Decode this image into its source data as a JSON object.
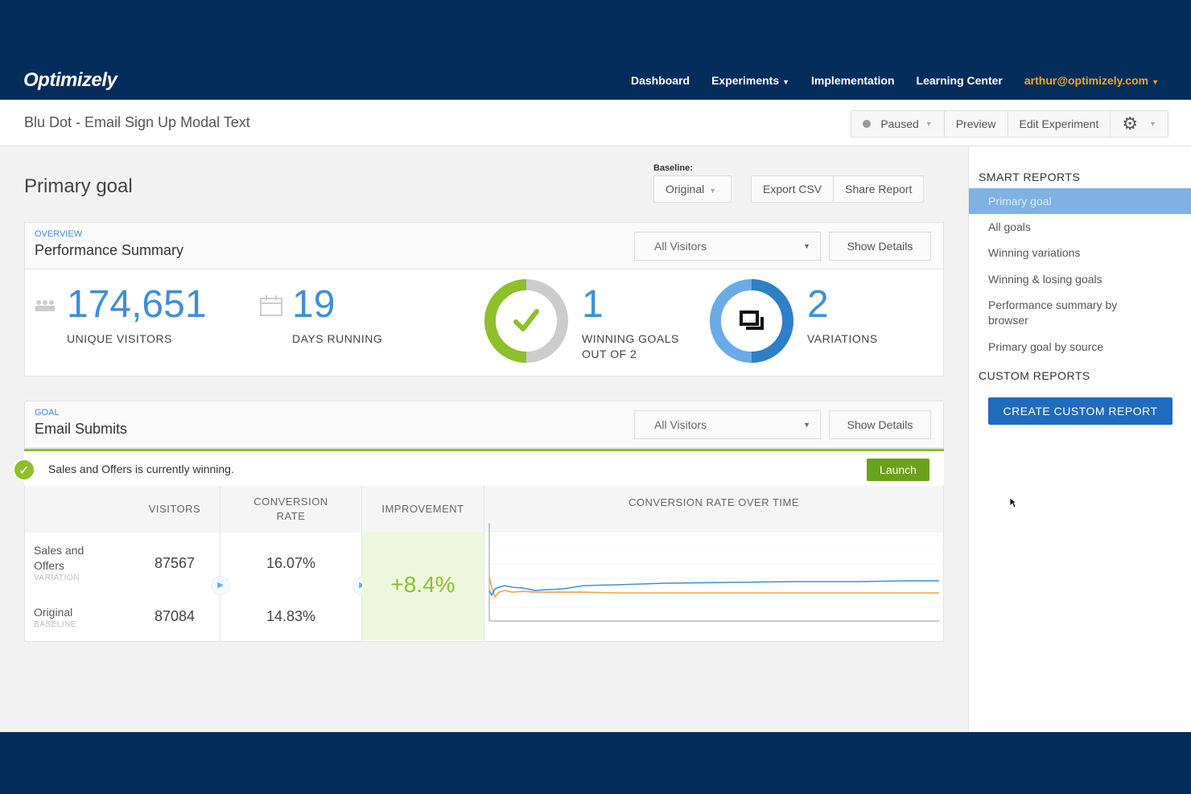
{
  "nav": {
    "logo": "Optimizely",
    "links": [
      "Dashboard",
      "Experiments",
      "Implementation",
      "Learning Center"
    ],
    "user": "arthur@optimizely.com"
  },
  "header": {
    "title": "Blu Dot - Email Sign Up Modal Text",
    "status": "Paused",
    "preview": "Preview",
    "edit": "Edit Experiment"
  },
  "main": {
    "title": "Primary goal",
    "baseline_label": "Baseline:",
    "baseline_value": "Original",
    "export": "Export CSV",
    "share": "Share Report"
  },
  "overview": {
    "eyebrow": "OVERVIEW",
    "title": "Performance Summary",
    "filter": "All Visitors",
    "show_details": "Show Details",
    "visitors": "174,651",
    "visitors_label": "UNIQUE VISITORS",
    "days": "19",
    "days_label": "DAYS RUNNING",
    "winning": "1",
    "winning_label_1": "WINNING GOALS",
    "winning_label_2": "OUT OF 2",
    "winning_fraction": 0.5,
    "variations": "2",
    "variations_label": "VARIATIONS"
  },
  "goal": {
    "eyebrow": "GOAL",
    "title": "Email Submits",
    "filter": "All Visitors",
    "show_details": "Show Details",
    "banner": "Sales and Offers is currently winning.",
    "launch": "Launch",
    "columns": {
      "visitors": "VISITORS",
      "conversion_1": "CONVERSION",
      "conversion_2": "RATE",
      "improvement": "IMPROVEMENT",
      "over_time": "CONVERSION RATE OVER TIME"
    },
    "rows": [
      {
        "name_1": "Sales and",
        "name_2": "Offers",
        "sub": "VARIATION",
        "visitors": "87567",
        "rate": "16.07%"
      },
      {
        "name_1": "Original",
        "name_2": "",
        "sub": "BASELINE",
        "visitors": "87084",
        "rate": "14.83%"
      }
    ],
    "improvement": "+8.4%",
    "colors": {
      "variation": "#3b8fd9",
      "baseline": "#f0a040"
    }
  },
  "sidebar": {
    "smart_heading": "SMART REPORTS",
    "items": [
      "Primary goal",
      "All goals",
      "Winning variations",
      "Winning & losing goals",
      "Performance summary by browser",
      "Primary goal by source"
    ],
    "custom_heading": "CUSTOM REPORTS",
    "create": "CREATE CUSTOM REPORT"
  }
}
